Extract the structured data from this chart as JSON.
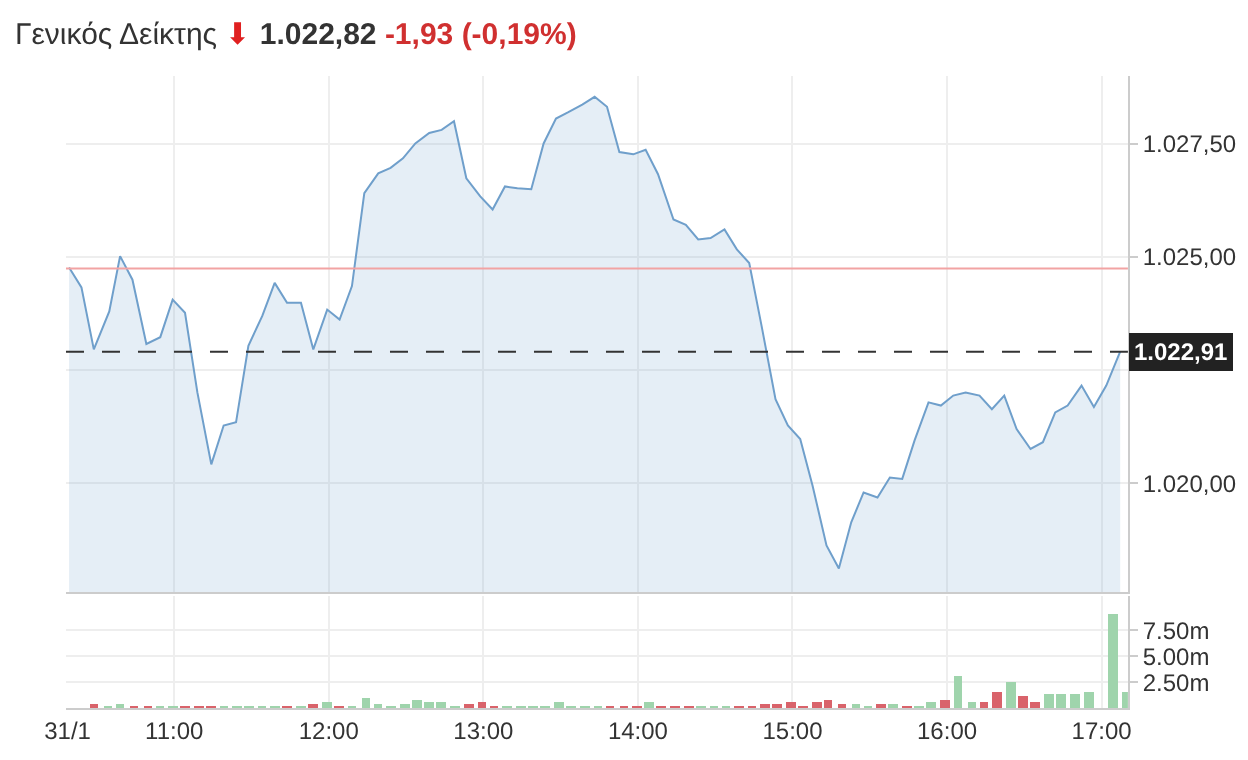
{
  "chart_data": [
    {
      "type": "area",
      "title": "Γενικός Δείκτης",
      "annotations": [
        "⬇",
        "1.022,82",
        "-1,93",
        "(-0,19%)"
      ],
      "x": [
        10.32,
        10.4,
        10.48,
        10.58,
        10.65,
        10.73,
        10.82,
        10.91,
        10.99,
        11.07,
        11.15,
        11.24,
        11.32,
        11.4,
        11.48,
        11.57,
        11.65,
        11.73,
        11.82,
        11.9,
        11.99,
        12.07,
        12.15,
        12.23,
        12.32,
        12.4,
        12.48,
        12.56,
        12.65,
        12.73,
        12.81,
        12.89,
        12.98,
        13.06,
        13.14,
        13.22,
        13.31,
        13.39,
        13.47,
        13.55,
        13.64,
        13.72,
        13.8,
        13.88,
        13.97,
        14.05,
        14.13,
        14.23,
        14.31,
        14.39,
        14.47,
        14.56,
        14.64,
        14.72,
        14.8,
        14.89,
        14.97,
        15.05,
        15.13,
        15.22,
        15.3,
        15.38,
        15.46,
        15.55,
        15.63,
        15.71,
        15.79,
        15.88,
        15.96,
        16.04,
        16.12,
        16.21,
        16.29,
        16.37,
        16.45,
        16.54,
        16.62,
        16.7,
        16.78,
        16.87,
        16.95,
        17.03,
        17.12
      ],
      "series": [
        {
          "color": "#6f9fcb",
          "values": [
            1024.77,
            1024.33,
            1022.96,
            1023.8,
            1025.02,
            1024.5,
            1023.08,
            1023.23,
            1024.06,
            1023.77,
            1022.01,
            1020.42,
            1021.28,
            1021.35,
            1023.04,
            1023.7,
            1024.43,
            1023.99,
            1023.99,
            1022.96,
            1023.84,
            1023.62,
            1024.36,
            1026.41,
            1026.85,
            1026.97,
            1027.18,
            1027.51,
            1027.74,
            1027.81,
            1028.0,
            1026.74,
            1026.34,
            1026.05,
            1026.56,
            1026.52,
            1026.5,
            1027.51,
            1028.06,
            1028.2,
            1028.37,
            1028.54,
            1028.32,
            1027.32,
            1027.27,
            1027.37,
            1026.83,
            1025.83,
            1025.71,
            1025.39,
            1025.42,
            1025.61,
            1025.17,
            1024.87,
            1023.48,
            1021.86,
            1021.28,
            1020.98,
            1019.95,
            1018.63,
            1018.12,
            1019.14,
            1019.8,
            1019.69,
            1020.13,
            1020.1,
            1020.95,
            1021.79,
            1021.72,
            1021.94,
            1022.01,
            1021.94,
            1021.64,
            1021.94,
            1021.2,
            1020.76,
            1020.91,
            1021.57,
            1021.72,
            1022.16,
            1021.69,
            1022.16,
            1022.91
          ]
        }
      ],
      "xlim": [
        10.3,
        17.17
      ],
      "ylim": [
        1017.6,
        1029.0
      ],
      "yticks": [
        {
          "value": 1020,
          "label": "1.020,00"
        },
        {
          "value": 1022.5,
          "label": null
        },
        {
          "value": 1025,
          "label": "1.025,00"
        },
        {
          "value": 1027.5,
          "label": "1.027,50"
        }
      ],
      "ref_lines": [
        {
          "axis": "y",
          "value": 1024.75,
          "color": "#f2a3a3",
          "line_style": "solid"
        },
        {
          "axis": "y",
          "value": 1022.91,
          "label": "1.022,91",
          "color": "#333333",
          "line_style": "dashed"
        }
      ],
      "grid": true,
      "tick_labels": "y"
    },
    {
      "type": "bar",
      "x": [
        10.48,
        10.57,
        10.65,
        10.74,
        10.83,
        10.91,
        10.99,
        11.07,
        11.16,
        11.24,
        11.32,
        11.41,
        11.48,
        11.57,
        11.65,
        11.73,
        11.82,
        11.9,
        11.99,
        12.07,
        12.15,
        12.24,
        12.32,
        12.4,
        12.49,
        12.57,
        12.65,
        12.73,
        12.82,
        12.91,
        12.99,
        13.07,
        13.15,
        13.24,
        13.32,
        13.4,
        13.49,
        13.57,
        13.66,
        13.74,
        13.82,
        13.91,
        13.99,
        14.07,
        14.15,
        14.24,
        14.33,
        14.41,
        14.49,
        14.57,
        14.65,
        14.74,
        14.82,
        14.9,
        14.99,
        15.07,
        15.16,
        15.23,
        15.32,
        15.41,
        15.49,
        15.57,
        15.65,
        15.74,
        15.82,
        15.9,
        15.99,
        16.07,
        16.16,
        16.24,
        16.32,
        16.41,
        16.49,
        16.57,
        16.66,
        16.74,
        16.83,
        16.92,
        17.07,
        17.16
      ],
      "values": [
        0.5,
        0.2,
        0.5,
        0.2,
        0.2,
        0.1,
        0.2,
        0.2,
        0.3,
        0.2,
        0.2,
        0.1,
        0.2,
        0.1,
        0.2,
        0.2,
        0.2,
        0.5,
        0.6,
        0.2,
        0.2,
        1.0,
        0.5,
        0.3,
        0.5,
        0.8,
        0.6,
        0.6,
        0.3,
        0.5,
        0.6,
        0.2,
        0.2,
        0.2,
        0.2,
        0.2,
        0.6,
        0.3,
        0.2,
        0.2,
        0.2,
        0.2,
        0.2,
        0.6,
        0.2,
        0.2,
        0.2,
        0.1,
        0.1,
        0.1,
        0.2,
        0.2,
        0.5,
        0.5,
        0.6,
        0.2,
        0.6,
        0.9,
        0.5,
        0.5,
        0.2,
        0.5,
        0.4,
        0.3,
        0.2,
        0.6,
        0.9,
        3.1,
        0.6,
        0.6,
        1.5,
        2.5,
        1.2,
        0.6,
        1.3,
        1.3,
        1.3,
        1.5,
        9.1,
        1.5
      ],
      "colors": [
        "#d9636b",
        "#9fd4ac",
        "#9fd4ac",
        "#d9636b",
        "#d9636b",
        "#9fd4ac",
        "#9fd4ac",
        "#d9636b",
        "#d9636b",
        "#d9636b",
        "#9fd4ac",
        "#9fd4ac",
        "#9fd4ac",
        "#9fd4ac",
        "#9fd4ac",
        "#d9636b",
        "#9fd4ac",
        "#d9636b",
        "#9fd4ac",
        "#d9636b",
        "#9fd4ac",
        "#9fd4ac",
        "#9fd4ac",
        "#9fd4ac",
        "#9fd4ac",
        "#9fd4ac",
        "#9fd4ac",
        "#9fd4ac",
        "#9fd4ac",
        "#d9636b",
        "#d9636b",
        "#d9636b",
        "#9fd4ac",
        "#9fd4ac",
        "#9fd4ac",
        "#9fd4ac",
        "#9fd4ac",
        "#9fd4ac",
        "#9fd4ac",
        "#9fd4ac",
        "#d9636b",
        "#d9636b",
        "#d9636b",
        "#9fd4ac",
        "#d9636b",
        "#d9636b",
        "#d9636b",
        "#9fd4ac",
        "#9fd4ac",
        "#9fd4ac",
        "#d9636b",
        "#d9636b",
        "#d9636b",
        "#d9636b",
        "#d9636b",
        "#d9636b",
        "#d9636b",
        "#d9636b",
        "#d9636b",
        "#9fd4ac",
        "#9fd4ac",
        "#d9636b",
        "#9fd4ac",
        "#d9636b",
        "#9fd4ac",
        "#9fd4ac",
        "#d9636b",
        "#9fd4ac",
        "#9fd4ac",
        "#d9636b",
        "#d9636b",
        "#9fd4ac",
        "#d9636b",
        "#d9636b",
        "#9fd4ac",
        "#9fd4ac",
        "#9fd4ac",
        "#9fd4ac",
        "#9fd4ac",
        "#9fd4ac"
      ],
      "xlim": [
        10.3,
        17.17
      ],
      "ylim": [
        0,
        10.8
      ],
      "xticks": [
        {
          "value": 10.31,
          "label": "31/1"
        },
        {
          "value": 11,
          "label": "11:00"
        },
        {
          "value": 12,
          "label": "12:00"
        },
        {
          "value": 13,
          "label": "13:00"
        },
        {
          "value": 14,
          "label": "14:00"
        },
        {
          "value": 15,
          "label": "15:00"
        },
        {
          "value": 16,
          "label": "16:00"
        },
        {
          "value": 17,
          "label": "17:00"
        }
      ],
      "yticks": [
        {
          "value": 2.5,
          "label": "2.50m"
        },
        {
          "value": 5,
          "label": "5.00m"
        },
        {
          "value": 7.5,
          "label": "7.50m"
        }
      ],
      "grid": true
    }
  ]
}
